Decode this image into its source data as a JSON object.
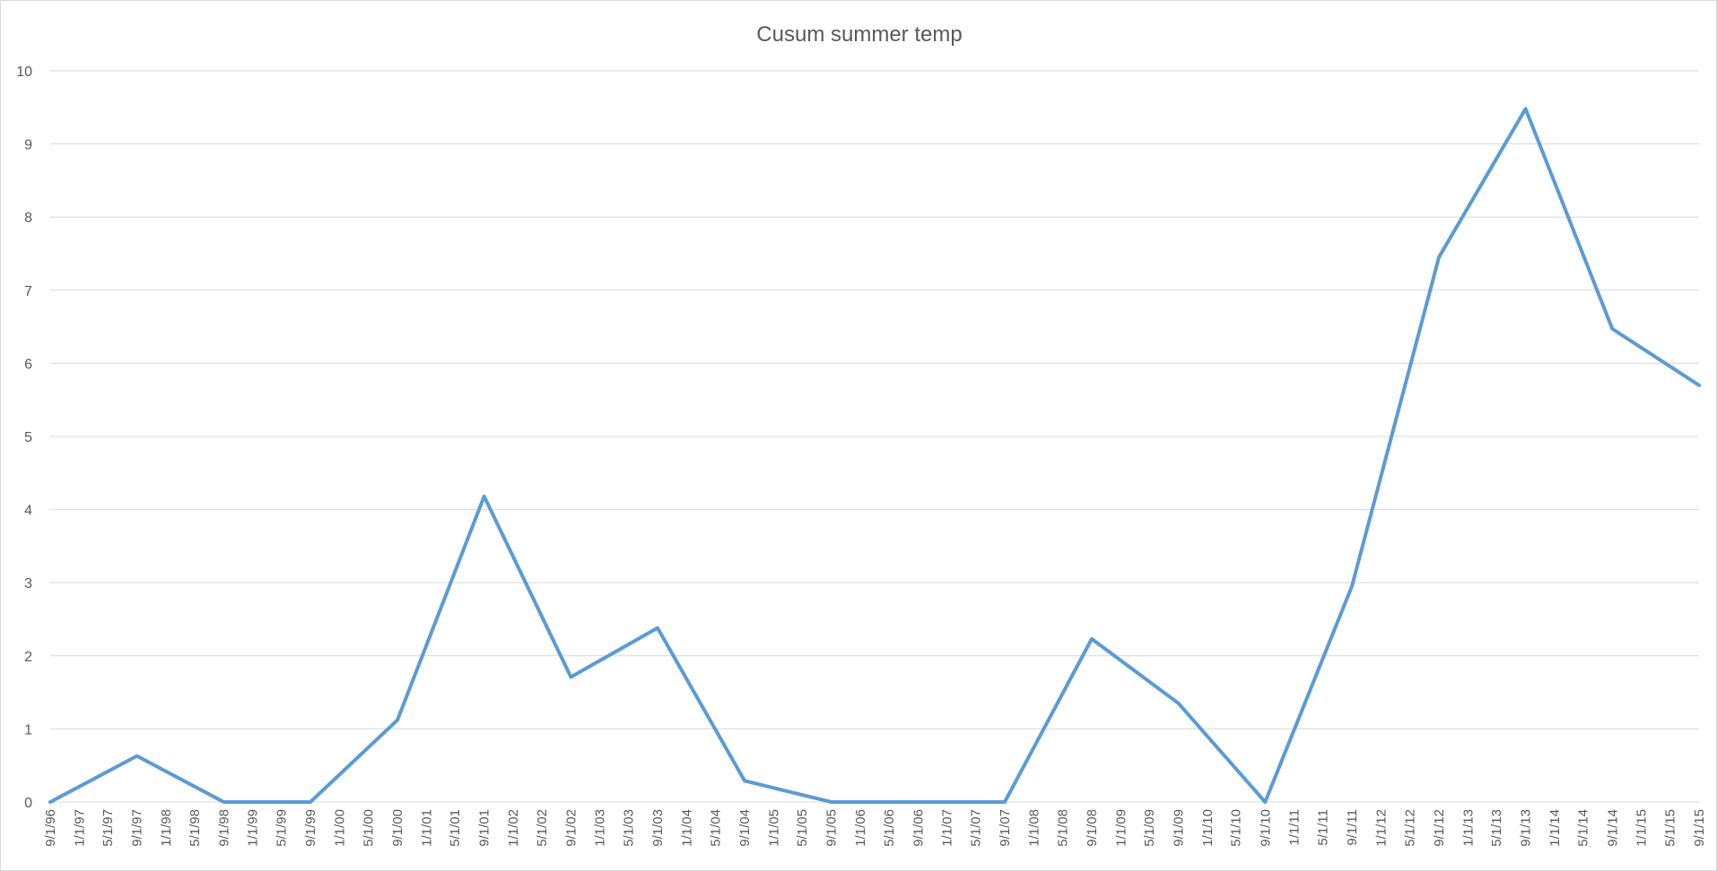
{
  "chart_data": {
    "type": "line",
    "title": "Cusum summer temp",
    "xlabel": "",
    "ylabel": "",
    "ylim": [
      0,
      10
    ],
    "y_ticks": [
      "0",
      "1",
      "2",
      "3",
      "4",
      "5",
      "6",
      "7",
      "8",
      "9",
      "10"
    ],
    "grid": true,
    "legend": "none",
    "x_ticks": [
      "9/1/96",
      "1/1/97",
      "5/1/97",
      "9/1/97",
      "1/1/98",
      "5/1/98",
      "9/1/98",
      "1/1/99",
      "5/1/99",
      "9/1/99",
      "1/1/00",
      "5/1/00",
      "9/1/00",
      "1/1/01",
      "5/1/01",
      "9/1/01",
      "1/1/02",
      "5/1/02",
      "9/1/02",
      "1/1/03",
      "5/1/03",
      "9/1/03",
      "1/1/04",
      "5/1/04",
      "9/1/04",
      "1/1/05",
      "5/1/05",
      "9/1/05",
      "1/1/06",
      "5/1/06",
      "9/1/06",
      "1/1/07",
      "5/1/07",
      "9/1/07",
      "1/1/08",
      "5/1/08",
      "9/1/08",
      "1/1/09",
      "5/1/09",
      "9/1/09",
      "1/1/10",
      "5/1/10",
      "9/1/10",
      "1/1/11",
      "5/1/11",
      "9/1/11",
      "1/1/12",
      "5/1/12",
      "9/1/12",
      "1/1/13",
      "5/1/13",
      "9/1/13",
      "1/1/14",
      "5/1/14",
      "9/1/14",
      "1/1/15",
      "5/1/15",
      "9/1/15"
    ],
    "series": [
      {
        "color": "#5b9bd5",
        "x": [
          "1996-09-01",
          "1997-09-01",
          "1998-09-01",
          "1999-09-01",
          "2000-09-01",
          "2001-09-01",
          "2002-09-01",
          "2003-09-01",
          "2004-09-01",
          "2005-09-01",
          "2006-09-01",
          "2007-09-01",
          "2008-09-01",
          "2009-09-01",
          "2010-09-01",
          "2011-09-01",
          "2012-09-01",
          "2013-09-01",
          "2014-09-01",
          "2015-09-01"
        ],
        "values": [
          0,
          0.63,
          0,
          0,
          1.12,
          4.18,
          1.71,
          2.38,
          0.29,
          0,
          0,
          0,
          2.23,
          1.35,
          0,
          2.95,
          7.45,
          9.48,
          6.47,
          5.7
        ]
      }
    ]
  }
}
